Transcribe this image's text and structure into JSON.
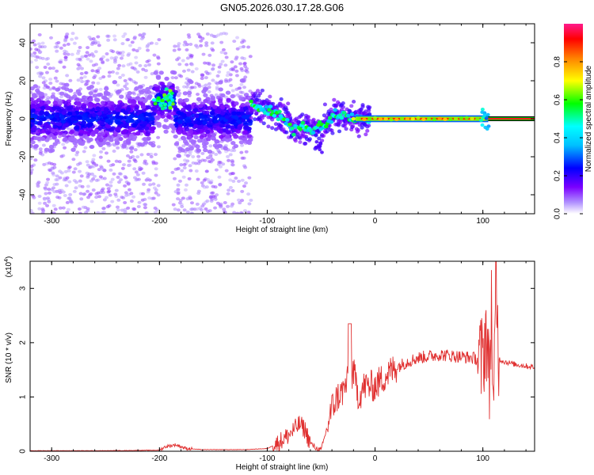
{
  "title": "GN05.2026.030.17.28.G06",
  "chart_data": [
    {
      "type": "heatmap",
      "xlabel": "Height of straight line (km)",
      "ylabel": "Frequency (Hz)",
      "xlim": [
        -320,
        148
      ],
      "ylim": [
        -50,
        50
      ],
      "xticks": [
        -300,
        -200,
        -100,
        0,
        100
      ],
      "yticks": [
        -40,
        -20,
        0,
        20,
        40
      ],
      "colorbar": {
        "label": "Normalized spectral amplitude",
        "range": [
          0,
          1
        ],
        "ticks": [
          0.0,
          0.2,
          0.4,
          0.6,
          0.8
        ],
        "colormap": [
          "#ffffff",
          "#7b00ff",
          "#0000ff",
          "#00ffff",
          "#00ff00",
          "#ffff00",
          "#ff8000",
          "#ff0000",
          "#ff1a8c"
        ]
      },
      "ridge": {
        "x": [
          -115,
          -105,
          -95,
          -85,
          -75,
          -68,
          -60,
          -52,
          -45,
          -38,
          -30,
          -20,
          -10,
          0,
          50,
          100,
          105
        ],
        "y": [
          8,
          6,
          4,
          0,
          -6,
          -3,
          -6,
          -4,
          -3,
          2,
          2,
          0,
          0,
          0,
          0,
          0,
          0
        ]
      },
      "central_band": {
        "xlim": [
          -320,
          -115
        ],
        "y": 0,
        "hump": {
          "x": [
            -205,
            -185
          ],
          "y": 10
        }
      },
      "scatter_region": {
        "xlim": [
          -320,
          -115
        ],
        "ylim": [
          -50,
          45
        ]
      },
      "line_after": {
        "x_start": 105,
        "y": 0,
        "color": "#ff1a1a"
      }
    },
    {
      "type": "line",
      "xlabel": "Height of straight line (km)",
      "ylabel": "SNR (10 * v/v)",
      "y_multiplier": "(x10^4)",
      "xlim": [
        -320,
        148
      ],
      "ylim": [
        0,
        3.5
      ],
      "xticks": [
        -300,
        -200,
        -100,
        0,
        100
      ],
      "yticks": [
        0,
        1,
        2,
        3
      ],
      "color": "#e03030",
      "series": [
        {
          "x": [
            -320,
            -250,
            -200,
            -195,
            -185,
            -175,
            -160,
            -120,
            -100,
            -90,
            -80,
            -70,
            -65,
            -60,
            -55,
            -50,
            -45,
            -40,
            -35,
            -30,
            -25,
            -20,
            -15,
            -10,
            0,
            10,
            20,
            30,
            40,
            50,
            60,
            70,
            80,
            90,
            95,
            100,
            103,
            106,
            108,
            110,
            112,
            115,
            120,
            130,
            140,
            148
          ],
          "y": [
            0.01,
            0.01,
            0.02,
            0.08,
            0.12,
            0.05,
            0.03,
            0.03,
            0.05,
            0.15,
            0.3,
            0.5,
            0.4,
            0.15,
            0.06,
            0.02,
            0.4,
            0.8,
            1.0,
            1.1,
            1.3,
            1.45,
            1.0,
            1.2,
            1.2,
            1.4,
            1.55,
            1.65,
            1.72,
            1.75,
            1.78,
            1.76,
            1.74,
            1.72,
            1.7,
            1.65,
            2.3,
            1.2,
            2.8,
            0.3,
            3.3,
            1.7,
            1.65,
            1.6,
            1.57,
            1.55
          ]
        }
      ]
    }
  ]
}
